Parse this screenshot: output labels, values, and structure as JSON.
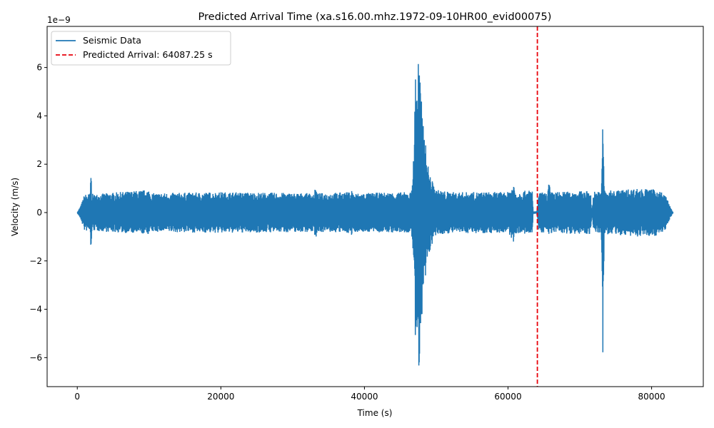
{
  "chart_data": {
    "type": "line",
    "title": "Predicted Arrival Time (xa.s16.00.mhz.1972-09-10HR00_evid00075)",
    "xlabel": "Time (s)",
    "ylabel": "Velocity (m/s)",
    "y_offset_label": "1e−9",
    "xlim": [
      -4200,
      87200
    ],
    "ylim": [
      -7.2,
      7.7
    ],
    "y_unit_scale": 1e-09,
    "x_ticks": [
      0,
      20000,
      40000,
      60000,
      80000
    ],
    "x_tick_labels": [
      "0",
      "20000",
      "40000",
      "60000",
      "80000"
    ],
    "y_ticks": [
      -6,
      -4,
      -2,
      0,
      2,
      4,
      6
    ],
    "y_tick_labels": [
      "−6",
      "−4",
      "−2",
      "0",
      "2",
      "4",
      "6"
    ],
    "grid": false,
    "legend_position": "top-left",
    "series": [
      {
        "name": "Seismic Data",
        "color": "#1f77b4",
        "style": "solid",
        "envelope": {
          "x": [
            0,
            500,
            1000,
            1800,
            1900,
            2000,
            2100,
            2200,
            4000,
            10000,
            10200,
            10400,
            20000,
            33000,
            33200,
            33400,
            38000,
            38200,
            38400,
            46500,
            46900,
            47100,
            47300,
            47600,
            47800,
            48000,
            48300,
            48600,
            48900,
            49200,
            49600,
            50000,
            51000,
            52000,
            60000,
            60800,
            61000,
            61200,
            63400,
            63500,
            63600,
            64000,
            64300,
            64500,
            65500,
            65700,
            65900,
            71500,
            71700,
            71900,
            73000,
            73200,
            73400,
            73600,
            78000,
            81000,
            82000,
            82500,
            83000
          ],
          "upper": [
            0,
            0.3,
            0.75,
            0.8,
            2.1,
            0.85,
            0.8,
            0.75,
            0.8,
            0.95,
            0.8,
            0.8,
            0.85,
            0.8,
            1.1,
            0.8,
            0.85,
            1.0,
            0.8,
            0.85,
            2.5,
            6.2,
            5.5,
            7.0,
            5.2,
            4.4,
            3.5,
            2.6,
            1.9,
            1.5,
            1.2,
            0.95,
            0.9,
            0.85,
            0.85,
            1.2,
            0.9,
            0.85,
            0.95,
            0.05,
            0.05,
            0.05,
            0.8,
            0.85,
            0.8,
            1.35,
            0.85,
            0.9,
            0.0,
            0.9,
            0.85,
            4.5,
            0.95,
            0.9,
            1.0,
            0.95,
            0.7,
            0.3,
            0.0
          ],
          "lower": [
            0,
            -0.3,
            -0.75,
            -0.8,
            -2.15,
            -0.85,
            -0.8,
            -0.75,
            -0.8,
            -0.9,
            -0.8,
            -0.8,
            -0.85,
            -0.8,
            -1.15,
            -0.8,
            -0.85,
            -1.0,
            -0.8,
            -0.85,
            -2.0,
            -5.5,
            -5.0,
            -6.5,
            -5.3,
            -4.8,
            -3.4,
            -2.6,
            -1.9,
            -1.5,
            -1.2,
            -0.95,
            -0.9,
            -0.85,
            -0.85,
            -1.25,
            -0.9,
            -0.85,
            -0.95,
            -0.05,
            -0.05,
            -0.05,
            -0.8,
            -0.85,
            -0.8,
            -1.1,
            -0.85,
            -0.9,
            0.0,
            -0.9,
            -0.85,
            -6.5,
            -1.0,
            -0.9,
            -1.0,
            -0.95,
            -0.7,
            -0.3,
            0.0
          ]
        }
      },
      {
        "name": "Predicted Arrival: 64087.25 s",
        "color": "#e8000b",
        "style": "dashed",
        "x": 64087.25
      }
    ]
  }
}
